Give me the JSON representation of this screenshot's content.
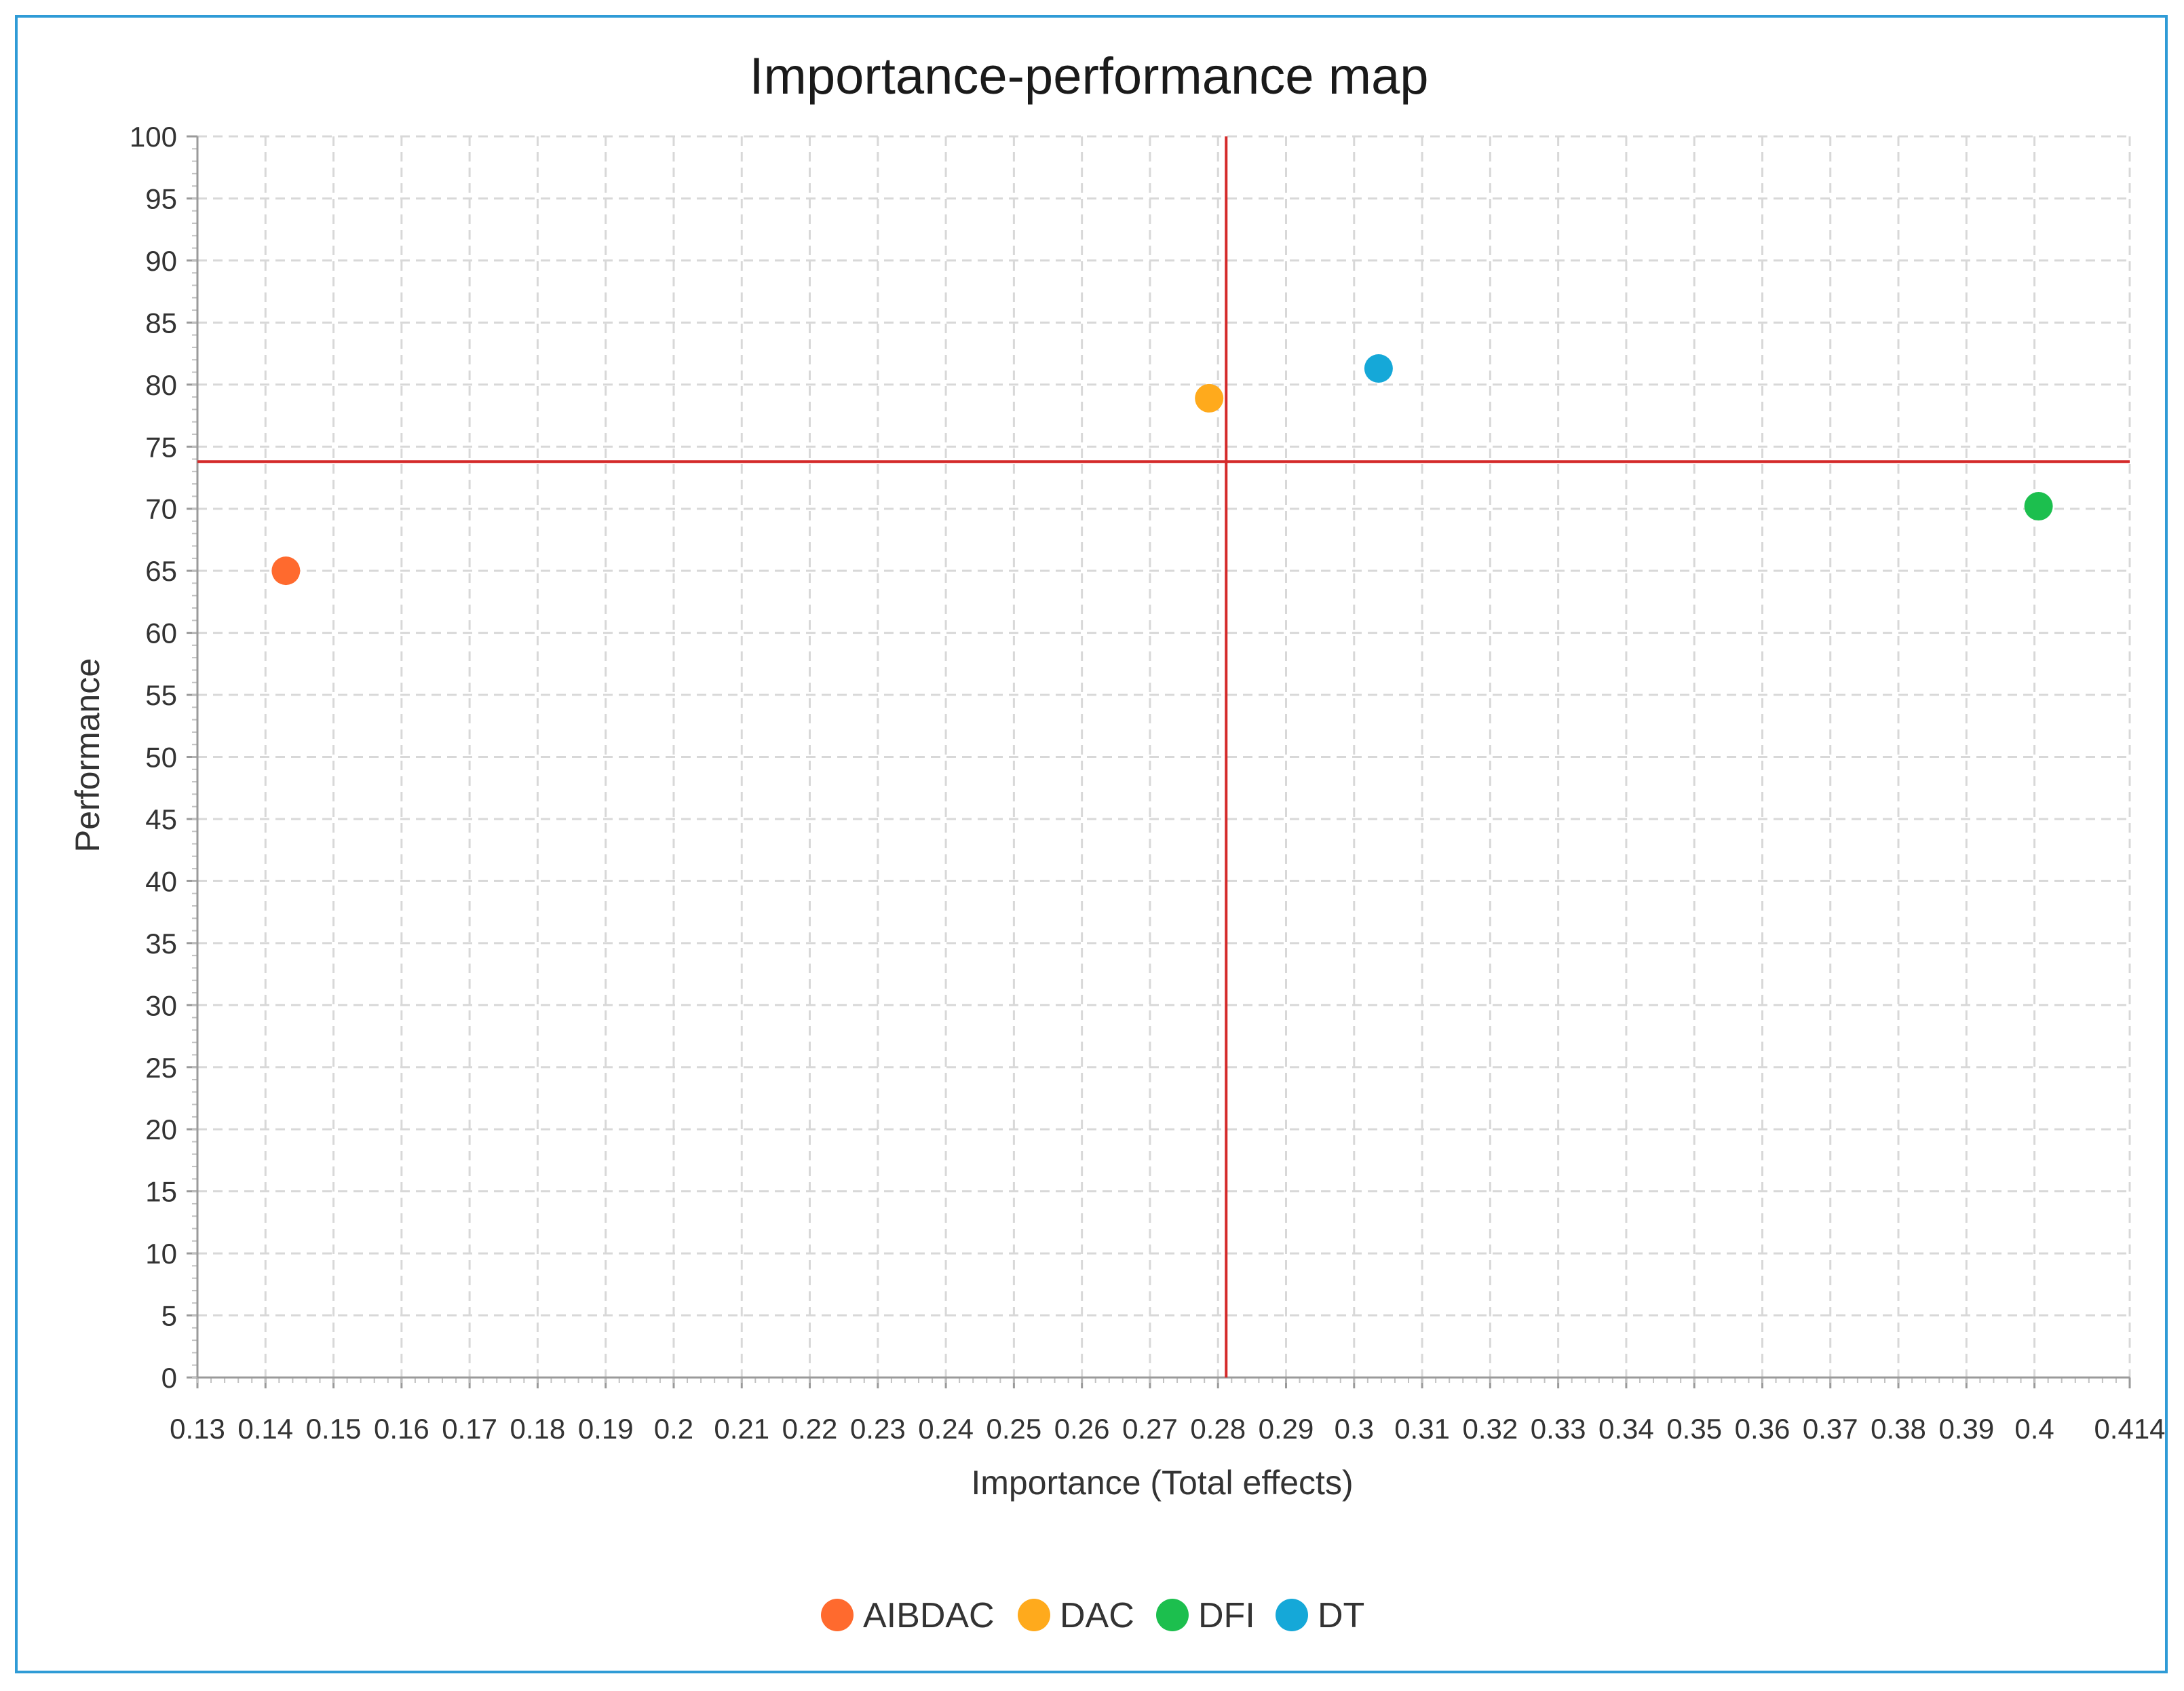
{
  "chart_data": {
    "type": "scatter",
    "title": "Importance-performance map",
    "xlabel": "Importance (Total effects)",
    "ylabel": "Performance",
    "xlim": [
      0.13,
      0.414
    ],
    "ylim": [
      0,
      100
    ],
    "x_ticks": [
      "0.13",
      "0.14",
      "0.15",
      "0.16",
      "0.17",
      "0.18",
      "0.19",
      "0.2",
      "0.21",
      "0.22",
      "0.23",
      "0.24",
      "0.25",
      "0.26",
      "0.27",
      "0.28",
      "0.29",
      "0.3",
      "0.31",
      "0.32",
      "0.33",
      "0.34",
      "0.35",
      "0.36",
      "0.37",
      "0.38",
      "0.39",
      "0.4",
      "0.414"
    ],
    "y_ticks": [
      "0",
      "5",
      "10",
      "15",
      "20",
      "25",
      "30",
      "35",
      "40",
      "45",
      "50",
      "55",
      "60",
      "65",
      "70",
      "75",
      "80",
      "85",
      "90",
      "95",
      "100"
    ],
    "grid": true,
    "reference_lines": {
      "x": 0.2812,
      "y": 73.8,
      "color": "#d42a2a"
    },
    "legend_position": "bottom",
    "series": [
      {
        "name": "AIBDAC",
        "color": "#ff6a2e",
        "x": 0.143,
        "y": 65.0
      },
      {
        "name": "DAC",
        "color": "#ffaa1c",
        "x": 0.2787,
        "y": 78.9
      },
      {
        "name": "DFI",
        "color": "#1cbf4e",
        "x": 0.4006,
        "y": 70.2
      },
      {
        "name": "DT",
        "color": "#15a8d8",
        "x": 0.3036,
        "y": 81.3
      }
    ]
  }
}
